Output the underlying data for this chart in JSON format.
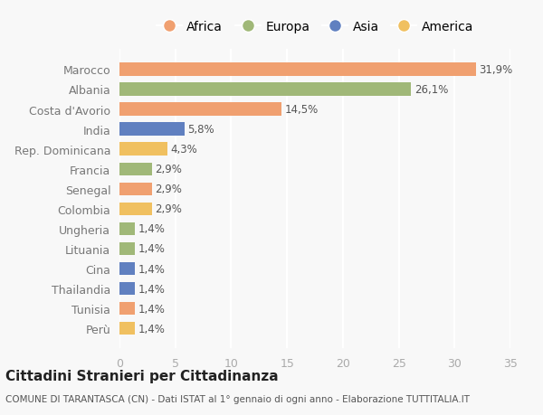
{
  "categories": [
    "Perù",
    "Tunisia",
    "Thailandia",
    "Cina",
    "Lituania",
    "Ungheria",
    "Colombia",
    "Senegal",
    "Francia",
    "Rep. Dominicana",
    "India",
    "Costa d'Avorio",
    "Albania",
    "Marocco"
  ],
  "values": [
    1.4,
    1.4,
    1.4,
    1.4,
    1.4,
    1.4,
    2.9,
    2.9,
    2.9,
    4.3,
    5.8,
    14.5,
    26.1,
    31.9
  ],
  "labels": [
    "1,4%",
    "1,4%",
    "1,4%",
    "1,4%",
    "1,4%",
    "1,4%",
    "2,9%",
    "2,9%",
    "2,9%",
    "4,3%",
    "5,8%",
    "14,5%",
    "26,1%",
    "31,9%"
  ],
  "colors": [
    "#f0c060",
    "#f0a070",
    "#6080c0",
    "#6080c0",
    "#a0b878",
    "#a0b878",
    "#f0c060",
    "#f0a070",
    "#a0b878",
    "#f0c060",
    "#6080c0",
    "#f0a070",
    "#a0b878",
    "#f0a070"
  ],
  "legend": [
    {
      "label": "Africa",
      "color": "#f0a070"
    },
    {
      "label": "Europa",
      "color": "#a0b878"
    },
    {
      "label": "Asia",
      "color": "#6080c0"
    },
    {
      "label": "America",
      "color": "#f0c060"
    }
  ],
  "title": "Cittadini Stranieri per Cittadinanza",
  "subtitle": "COMUNE DI TARANTASCA (CN) - Dati ISTAT al 1° gennaio di ogni anno - Elaborazione TUTTITALIA.IT",
  "xlim": [
    0,
    35
  ],
  "xticks": [
    0,
    5,
    10,
    15,
    20,
    25,
    30,
    35
  ],
  "bg_color": "#f8f8f8",
  "grid_color": "#ffffff",
  "bar_height": 0.65
}
